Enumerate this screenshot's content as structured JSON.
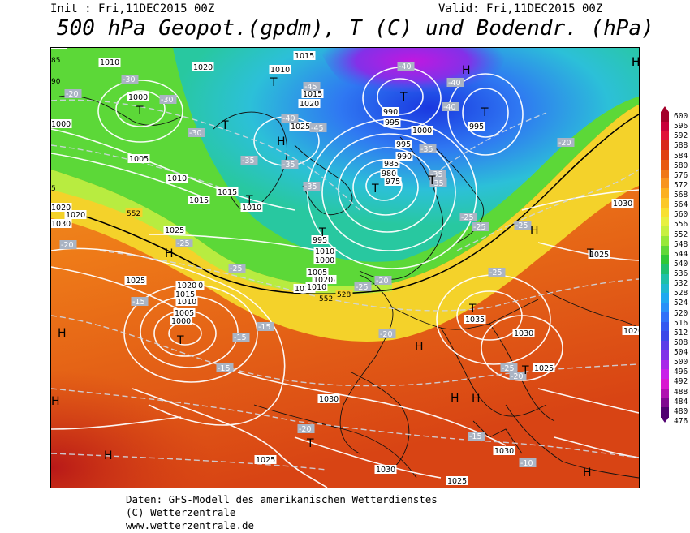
{
  "header": {
    "init": "Init : Fri,11DEC2015 00Z",
    "valid": "Valid: Fri,11DEC2015 00Z",
    "title": "500 hPa Geopot.(gpdm), T (C) und Bodendr. (hPa)"
  },
  "footer": {
    "line1": "Daten: GFS-Modell des amerikanischen Wetterdienstes",
    "line2": "(C) Wetterzentrale",
    "line3": "www.wetterzentrale.de"
  },
  "colorbar": {
    "labels": [
      "600",
      "596",
      "592",
      "588",
      "584",
      "580",
      "576",
      "572",
      "568",
      "564",
      "560",
      "556",
      "552",
      "548",
      "544",
      "540",
      "536",
      "532",
      "528",
      "524",
      "520",
      "516",
      "512",
      "508",
      "504",
      "500",
      "496",
      "492",
      "488",
      "484",
      "480",
      "476"
    ],
    "colors": [
      "#a4002a",
      "#c8003a",
      "#e0103a",
      "#d8281a",
      "#e04010",
      "#e85a10",
      "#f07818",
      "#f89420",
      "#fcb020",
      "#fcc828",
      "#f8e030",
      "#e8f040",
      "#c8f040",
      "#98e838",
      "#60d838",
      "#30c838",
      "#20c070",
      "#20c0a8",
      "#20b8d0",
      "#20a8f0",
      "#2890f8",
      "#3070f8",
      "#3458f0",
      "#3a48e8",
      "#5a3ce8",
      "#8030e8",
      "#a828e8",
      "#c820e8",
      "#d818d0",
      "#b010b0",
      "#800890",
      "#500070"
    ]
  },
  "map": {
    "pressure_labels": [
      "1010",
      "1020",
      "1015",
      "1010",
      "1000",
      "1015",
      "1020",
      "1025",
      "1000",
      "1005",
      "1010",
      "1015",
      "1010",
      "1015",
      "1020",
      "1025",
      "1025",
      "1000",
      "1005",
      "1010",
      "1015",
      "1020",
      "1020",
      "1015",
      "1010",
      "1005",
      "1000",
      "1010",
      "1015",
      "1020",
      "990",
      "995",
      "1000",
      "995",
      "990",
      "985",
      "980",
      "975",
      "995",
      "990",
      "1000",
      "1005",
      "1010",
      "1015",
      "1020",
      "1030",
      "1025",
      "1035",
      "1030",
      "1025",
      "1020",
      "1030",
      "1030",
      "1025",
      "1030",
      "1025",
      "1030",
      "995",
      "990"
    ],
    "temperature_labels": [
      "-20",
      "-30",
      "-30",
      "-30",
      "-35",
      "-35",
      "-35",
      "-45",
      "-40",
      "-45",
      "-40",
      "-40",
      "-35",
      "-35",
      "-25",
      "-20",
      "-25",
      "-15",
      "-15",
      "-15",
      "-15",
      "-20",
      "-20",
      "-25",
      "-25",
      "-25",
      "-25",
      "-25",
      "-20",
      "-15",
      "-10",
      "-20",
      "-25",
      "-20",
      "-35",
      "-40"
    ],
    "high_labels": [
      "H",
      "H",
      "H",
      "H",
      "H",
      "H",
      "H",
      "H",
      "H",
      "H",
      "H",
      "H",
      "H"
    ],
    "low_labels": [
      "T",
      "T",
      "T",
      "T",
      "T",
      "T",
      "T",
      "T",
      "T",
      "T",
      "T",
      "T",
      "T",
      "T"
    ],
    "edge_labels": [
      "85",
      "90",
      "5"
    ],
    "height_labels": [
      "552",
      "552",
      "528"
    ]
  }
}
